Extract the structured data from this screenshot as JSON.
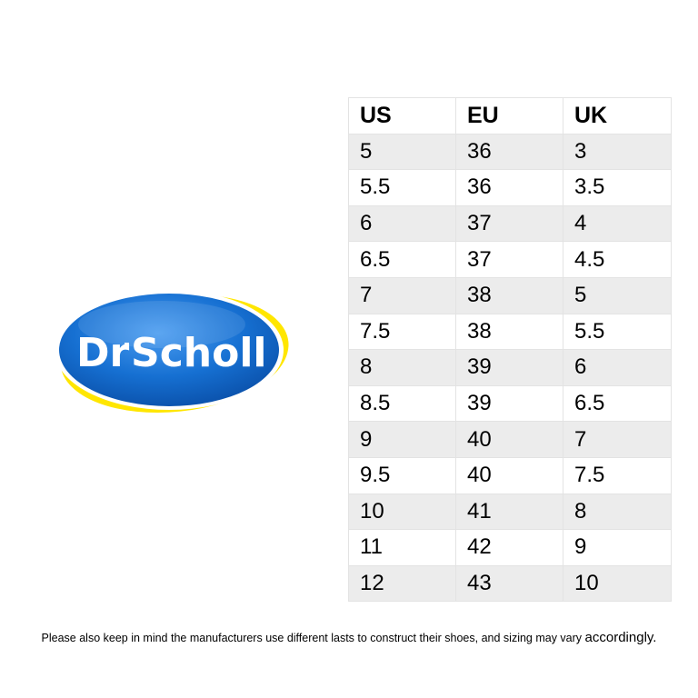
{
  "logo": {
    "text": "Dr Scholl",
    "colors": {
      "blue": "#0b64c4",
      "blue_light": "#3d8fe6",
      "yellow": "#ffe600",
      "white": "#ffffff"
    }
  },
  "size_chart": {
    "headers": [
      "US",
      "EU",
      "UK"
    ],
    "rows": [
      [
        "5",
        "36",
        "3"
      ],
      [
        "5.5",
        "36",
        "3.5"
      ],
      [
        "6",
        "37",
        "4"
      ],
      [
        "6.5",
        "37",
        "4.5"
      ],
      [
        "7",
        "38",
        "5"
      ],
      [
        "7.5",
        "38",
        "5.5"
      ],
      [
        "8",
        "39",
        "6"
      ],
      [
        "8.5",
        "39",
        "6.5"
      ],
      [
        "9",
        "40",
        "7"
      ],
      [
        "9.5",
        "40",
        "7.5"
      ],
      [
        "10",
        "41",
        "8"
      ],
      [
        "11",
        "42",
        "9"
      ],
      [
        "12",
        "43",
        "10"
      ]
    ],
    "colors": {
      "stripe": "#ececec",
      "border": "#e3e3e3"
    }
  },
  "footnote": {
    "text": "Please also keep in mind the manufacturers use different lasts to construct their shoes, and sizing may vary",
    "last_word": "accordingly."
  }
}
